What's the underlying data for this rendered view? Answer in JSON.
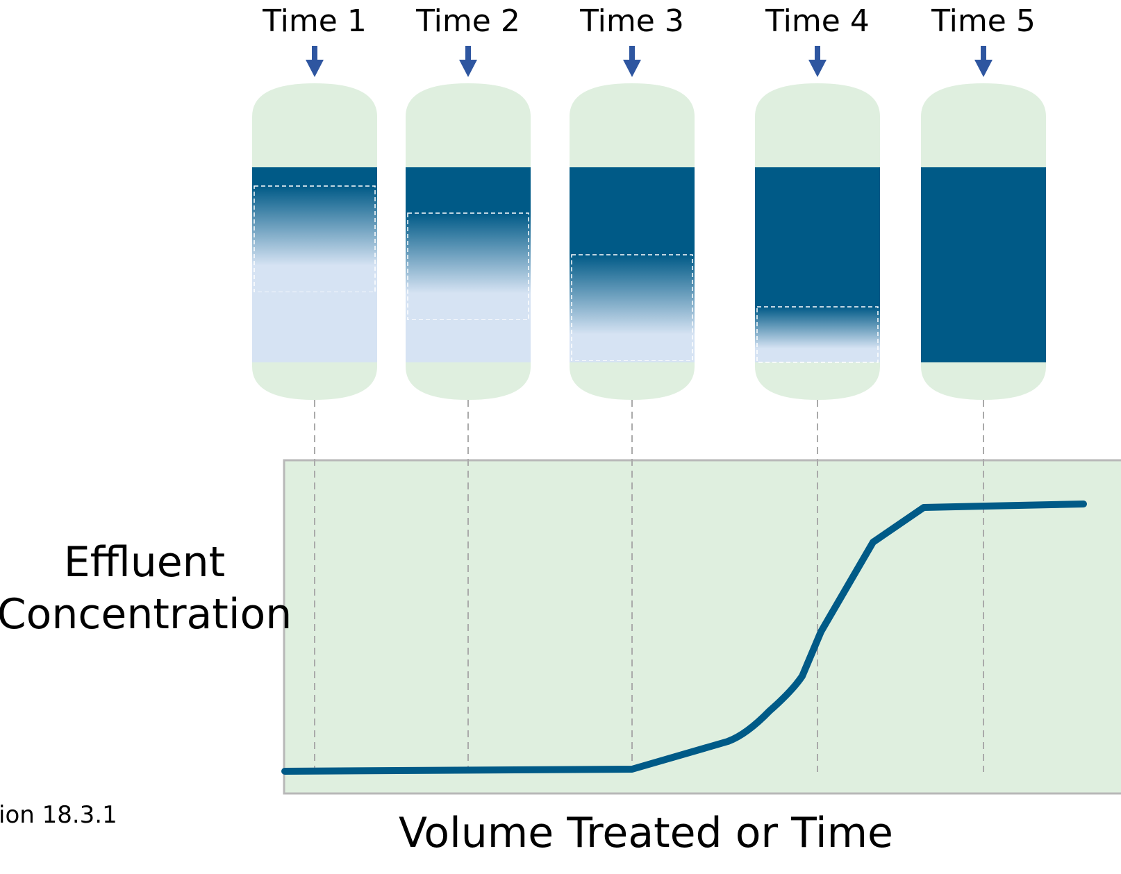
{
  "times": [
    "Time 1",
    "Time 2",
    "Time 3",
    "Time 4",
    "Time 5"
  ],
  "y_axis_label": [
    "Effluent",
    "Concentration"
  ],
  "x_axis_label": "Volume Treated or Time",
  "caption": "ion 18.3.1"
}
